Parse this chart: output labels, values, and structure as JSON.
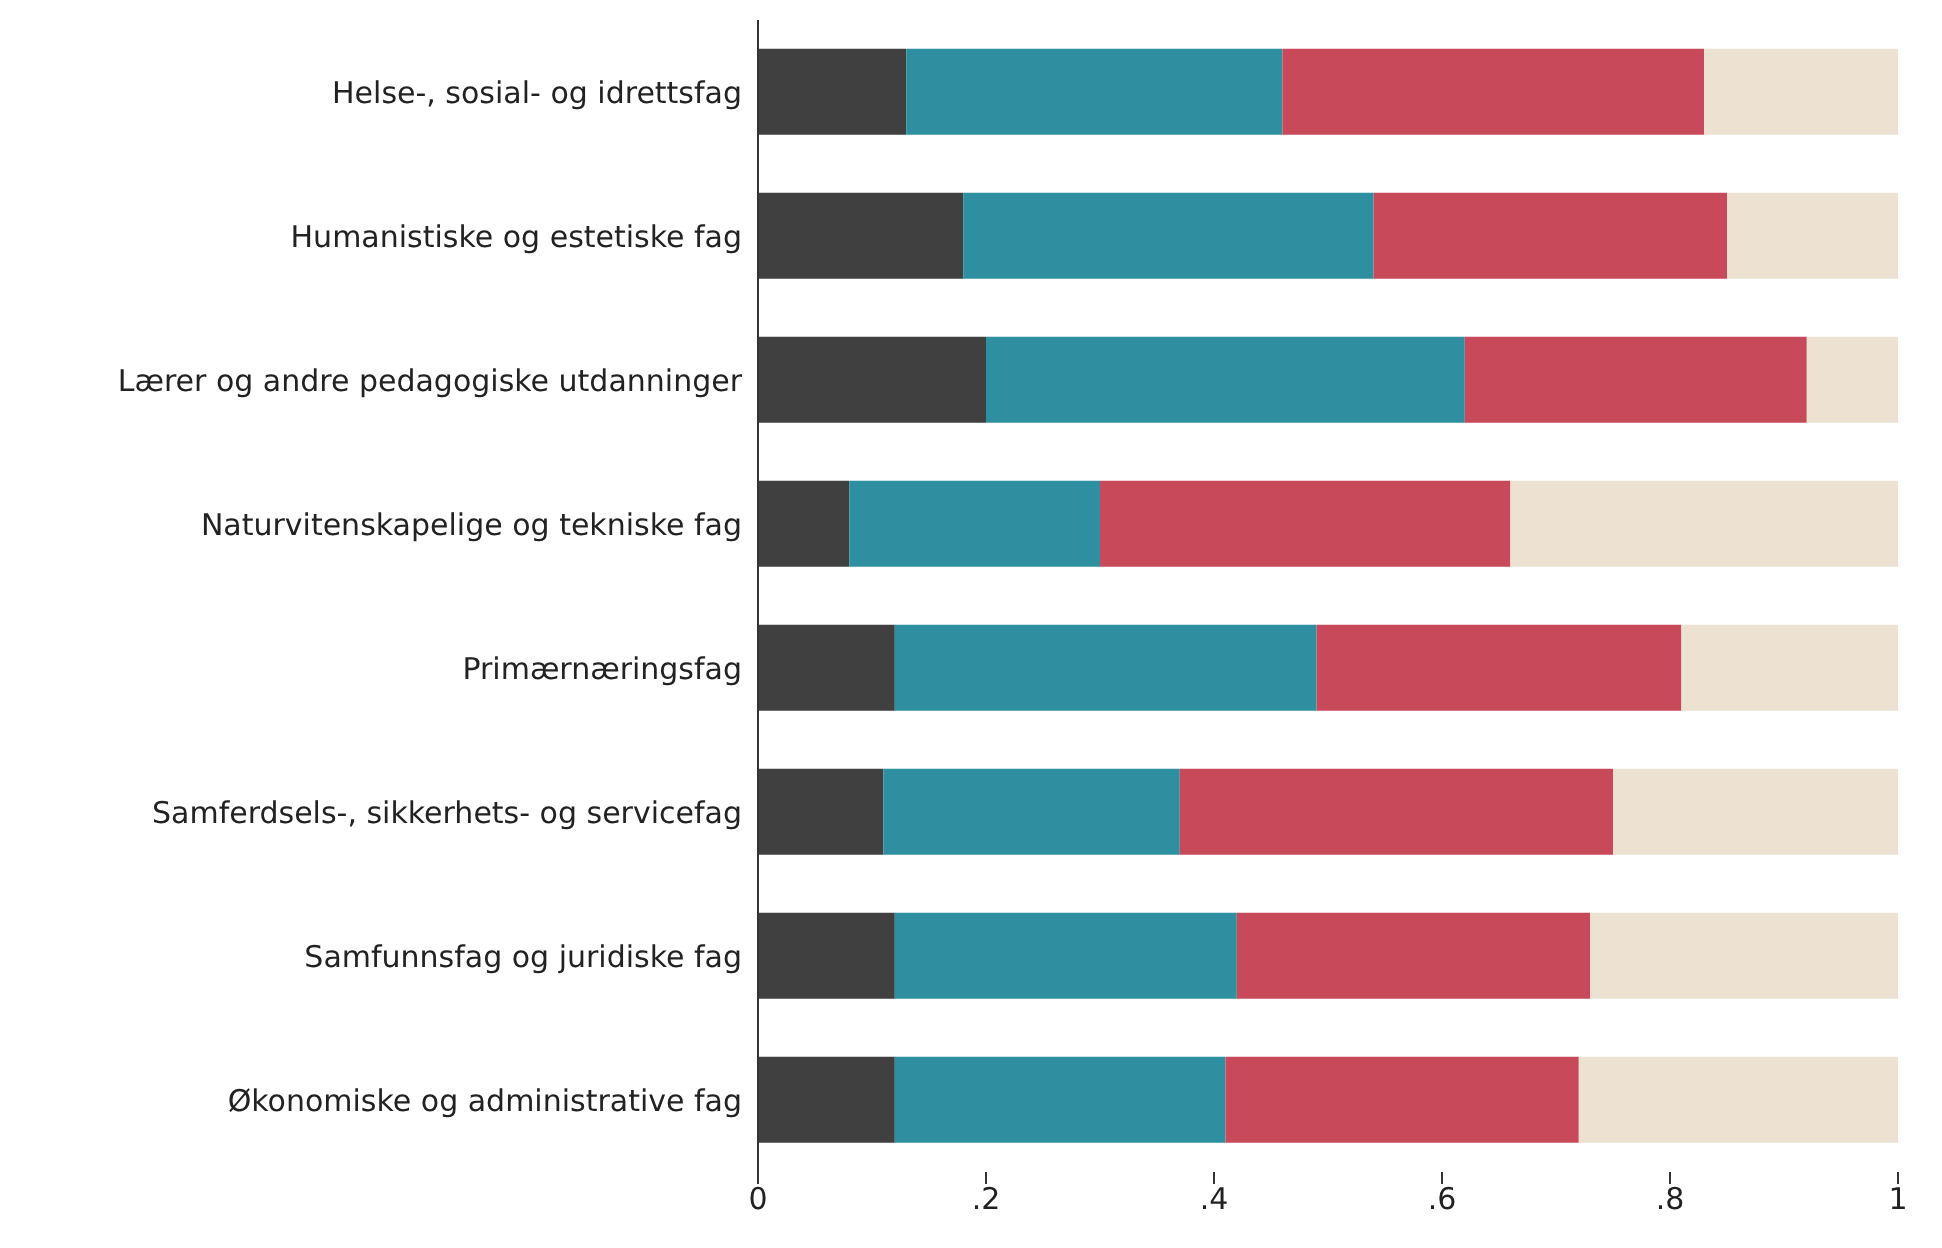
{
  "chart_data": {
    "type": "bar",
    "orientation": "horizontal",
    "stacked": true,
    "categories": [
      "Helse-, sosial- og idrettsfag",
      "Humanistiske og estetiske fag",
      "Lærer og andre pedagogiske utdanninger",
      "Naturvitenskapelige og tekniske fag",
      "Primærnæringsfag",
      "Samferdsels-, sikkerhets- og servicefag",
      "Samfunnsfag og juridiske fag",
      "Økonomiske og administrative fag"
    ],
    "series": [
      {
        "color": "#404040",
        "values": [
          0.13,
          0.18,
          0.2,
          0.08,
          0.12,
          0.11,
          0.12,
          0.12
        ]
      },
      {
        "color": "#2e8fa0",
        "values": [
          0.33,
          0.36,
          0.42,
          0.22,
          0.37,
          0.26,
          0.3,
          0.29
        ]
      },
      {
        "color": "#c84a5a",
        "values": [
          0.37,
          0.31,
          0.3,
          0.36,
          0.32,
          0.38,
          0.31,
          0.31
        ]
      },
      {
        "color": "#ede1d1",
        "values": [
          0.17,
          0.15,
          0.08,
          0.34,
          0.19,
          0.25,
          0.27,
          0.28
        ]
      }
    ],
    "xlim": [
      0,
      1
    ],
    "xticks": [
      0,
      {
        "value": 0.2,
        "label": ".2"
      },
      {
        "value": 0.4,
        "label": ".4"
      },
      {
        "value": 0.6,
        "label": ".6"
      },
      {
        "value": 0.8,
        "label": ".8"
      },
      1
    ],
    "grid": false,
    "legend": false
  }
}
